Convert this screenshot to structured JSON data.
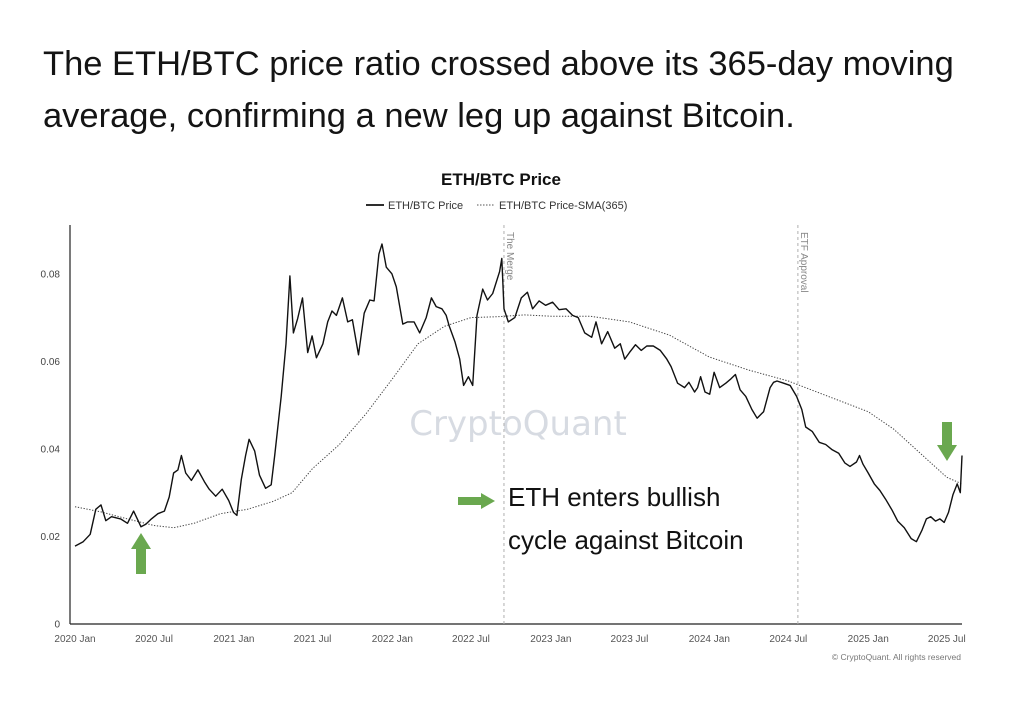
{
  "headline": "The ETH/BTC price ratio crossed above its 365-day moving average, confirming a new leg up against Bitcoin.",
  "watermark": "CryptoQuant",
  "copyright": "© CryptoQuant. All rights reserved",
  "annotation": {
    "lines": [
      "ETH enters bullish",
      "cycle against Bitcoin"
    ]
  },
  "colors": {
    "price": "#111111",
    "sma": "#444444",
    "arrow": "#6aa84f",
    "event_line": "#b0b0b0"
  },
  "chart_data": {
    "type": "line",
    "title": "ETH/BTC Price",
    "legend": [
      "ETH/BTC Price",
      "ETH/BTC Price-SMA(365)"
    ],
    "legend_position": "top-center",
    "grid": false,
    "xlim": [
      "2020-01-01",
      "2025-08-05"
    ],
    "ylim": [
      0,
      0.09
    ],
    "y_ticks": [
      {
        "value": 0,
        "label": "0"
      },
      {
        "value": 0.02,
        "label": "0.02"
      },
      {
        "value": 0.04,
        "label": "0.04"
      },
      {
        "value": 0.06,
        "label": "0.06"
      },
      {
        "value": 0.08,
        "label": "0.08"
      }
    ],
    "x_ticks": [
      {
        "date": "2020-01-01",
        "label": "2020 Jan"
      },
      {
        "date": "2020-07-01",
        "label": "2020 Jul"
      },
      {
        "date": "2021-01-01",
        "label": "2021 Jan"
      },
      {
        "date": "2021-07-01",
        "label": "2021 Jul"
      },
      {
        "date": "2022-01-01",
        "label": "2022 Jan"
      },
      {
        "date": "2022-07-01",
        "label": "2022 Jul"
      },
      {
        "date": "2023-01-01",
        "label": "2023 Jan"
      },
      {
        "date": "2023-07-01",
        "label": "2023 Jul"
      },
      {
        "date": "2024-01-01",
        "label": "2024 Jan"
      },
      {
        "date": "2024-07-01",
        "label": "2024 Jul"
      },
      {
        "date": "2025-01-01",
        "label": "2025 Jan"
      },
      {
        "date": "2025-07-01",
        "label": "2025 Jul"
      }
    ],
    "events": [
      {
        "date": "2022-09-15",
        "label": "The Merge"
      },
      {
        "date": "2024-07-23",
        "label": "ETF Approval"
      }
    ],
    "series": [
      {
        "name": "ETH/BTC Price",
        "style": "solid",
        "points": [
          [
            "2020-01-01",
            0.0178
          ],
          [
            "2020-01-20",
            0.0188
          ],
          [
            "2020-02-05",
            0.0205
          ],
          [
            "2020-02-18",
            0.0262
          ],
          [
            "2020-03-01",
            0.0272
          ],
          [
            "2020-03-12",
            0.0236
          ],
          [
            "2020-03-25",
            0.0245
          ],
          [
            "2020-04-15",
            0.024
          ],
          [
            "2020-05-01",
            0.023
          ],
          [
            "2020-05-15",
            0.0258
          ],
          [
            "2020-06-01",
            0.0222
          ],
          [
            "2020-06-12",
            0.0228
          ],
          [
            "2020-06-25",
            0.024
          ],
          [
            "2020-07-10",
            0.0252
          ],
          [
            "2020-07-25",
            0.0258
          ],
          [
            "2020-08-05",
            0.029
          ],
          [
            "2020-08-15",
            0.0345
          ],
          [
            "2020-08-25",
            0.0352
          ],
          [
            "2020-09-02",
            0.0385
          ],
          [
            "2020-09-12",
            0.0345
          ],
          [
            "2020-09-25",
            0.0328
          ],
          [
            "2020-10-10",
            0.0352
          ],
          [
            "2020-10-25",
            0.0325
          ],
          [
            "2020-11-05",
            0.0308
          ],
          [
            "2020-11-20",
            0.0292
          ],
          [
            "2020-12-05",
            0.0308
          ],
          [
            "2020-12-20",
            0.0282
          ],
          [
            "2020-12-31",
            0.0255
          ],
          [
            "2021-01-08",
            0.0248
          ],
          [
            "2021-01-18",
            0.033
          ],
          [
            "2021-01-28",
            0.0385
          ],
          [
            "2021-02-05",
            0.0422
          ],
          [
            "2021-02-18",
            0.0395
          ],
          [
            "2021-03-01",
            0.034
          ],
          [
            "2021-03-15",
            0.031
          ],
          [
            "2021-03-28",
            0.0318
          ],
          [
            "2021-04-05",
            0.0385
          ],
          [
            "2021-04-20",
            0.052
          ],
          [
            "2021-05-01",
            0.064
          ],
          [
            "2021-05-10",
            0.0795
          ],
          [
            "2021-05-18",
            0.0665
          ],
          [
            "2021-05-28",
            0.0698
          ],
          [
            "2021-06-08",
            0.0745
          ],
          [
            "2021-06-20",
            0.062
          ],
          [
            "2021-06-30",
            0.0658
          ],
          [
            "2021-07-10",
            0.0608
          ],
          [
            "2021-07-25",
            0.064
          ],
          [
            "2021-08-05",
            0.069
          ],
          [
            "2021-08-15",
            0.0715
          ],
          [
            "2021-08-25",
            0.0705
          ],
          [
            "2021-09-08",
            0.0745
          ],
          [
            "2021-09-20",
            0.069
          ],
          [
            "2021-10-01",
            0.0695
          ],
          [
            "2021-10-15",
            0.0615
          ],
          [
            "2021-10-28",
            0.071
          ],
          [
            "2021-11-10",
            0.074
          ],
          [
            "2021-11-20",
            0.0738
          ],
          [
            "2021-12-01",
            0.0845
          ],
          [
            "2021-12-08",
            0.0868
          ],
          [
            "2021-12-18",
            0.0815
          ],
          [
            "2021-12-31",
            0.08
          ],
          [
            "2022-01-10",
            0.077
          ],
          [
            "2022-01-25",
            0.0685
          ],
          [
            "2022-02-05",
            0.069
          ],
          [
            "2022-02-20",
            0.069
          ],
          [
            "2022-03-05",
            0.0665
          ],
          [
            "2022-03-20",
            0.07
          ],
          [
            "2022-04-01",
            0.0745
          ],
          [
            "2022-04-12",
            0.0725
          ],
          [
            "2022-04-25",
            0.072
          ],
          [
            "2022-05-05",
            0.0705
          ],
          [
            "2022-05-12",
            0.068
          ],
          [
            "2022-05-25",
            0.0645
          ],
          [
            "2022-06-05",
            0.0605
          ],
          [
            "2022-06-14",
            0.0545
          ],
          [
            "2022-06-25",
            0.0565
          ],
          [
            "2022-07-05",
            0.0545
          ],
          [
            "2022-07-15",
            0.0705
          ],
          [
            "2022-07-28",
            0.0765
          ],
          [
            "2022-08-08",
            0.074
          ],
          [
            "2022-08-20",
            0.0755
          ],
          [
            "2022-09-05",
            0.0805
          ],
          [
            "2022-09-10",
            0.0835
          ],
          [
            "2022-09-15",
            0.072
          ],
          [
            "2022-09-25",
            0.069
          ],
          [
            "2022-10-10",
            0.07
          ],
          [
            "2022-10-25",
            0.0745
          ],
          [
            "2022-11-08",
            0.0758
          ],
          [
            "2022-11-20",
            0.072
          ],
          [
            "2022-12-05",
            0.0738
          ],
          [
            "2022-12-20",
            0.0728
          ],
          [
            "2023-01-05",
            0.0735
          ],
          [
            "2023-01-20",
            0.0718
          ],
          [
            "2023-02-05",
            0.072
          ],
          [
            "2023-02-20",
            0.0705
          ],
          [
            "2023-03-05",
            0.07
          ],
          [
            "2023-03-20",
            0.0665
          ],
          [
            "2023-04-05",
            0.0655
          ],
          [
            "2023-04-15",
            0.069
          ],
          [
            "2023-04-28",
            0.064
          ],
          [
            "2023-05-12",
            0.0668
          ],
          [
            "2023-05-28",
            0.063
          ],
          [
            "2023-06-10",
            0.064
          ],
          [
            "2023-06-20",
            0.0605
          ],
          [
            "2023-07-01",
            0.062
          ],
          [
            "2023-07-15",
            0.0638
          ],
          [
            "2023-07-28",
            0.0625
          ],
          [
            "2023-08-10",
            0.0635
          ],
          [
            "2023-08-25",
            0.0635
          ],
          [
            "2023-09-10",
            0.0625
          ],
          [
            "2023-09-25",
            0.0605
          ],
          [
            "2023-10-05",
            0.0588
          ],
          [
            "2023-10-20",
            0.055
          ],
          [
            "2023-11-05",
            0.054
          ],
          [
            "2023-11-15",
            0.0552
          ],
          [
            "2023-11-28",
            0.053
          ],
          [
            "2023-12-05",
            0.054
          ],
          [
            "2023-12-12",
            0.0565
          ],
          [
            "2023-12-22",
            0.053
          ],
          [
            "2024-01-02",
            0.0525
          ],
          [
            "2024-01-12",
            0.0575
          ],
          [
            "2024-01-25",
            0.054
          ],
          [
            "2024-02-08",
            0.055
          ],
          [
            "2024-02-20",
            0.056
          ],
          [
            "2024-03-01",
            0.057
          ],
          [
            "2024-03-12",
            0.0535
          ],
          [
            "2024-03-25",
            0.052
          ],
          [
            "2024-04-08",
            0.049
          ],
          [
            "2024-04-20",
            0.047
          ],
          [
            "2024-05-05",
            0.0485
          ],
          [
            "2024-05-20",
            0.054
          ],
          [
            "2024-05-28",
            0.0552
          ],
          [
            "2024-06-05",
            0.0555
          ],
          [
            "2024-06-20",
            0.055
          ],
          [
            "2024-07-05",
            0.0545
          ],
          [
            "2024-07-20",
            0.052
          ],
          [
            "2024-08-01",
            0.049
          ],
          [
            "2024-08-10",
            0.045
          ],
          [
            "2024-08-25",
            0.044
          ],
          [
            "2024-09-10",
            0.0415
          ],
          [
            "2024-09-25",
            0.041
          ],
          [
            "2024-10-10",
            0.0398
          ],
          [
            "2024-10-25",
            0.039
          ],
          [
            "2024-11-08",
            0.0368
          ],
          [
            "2024-11-20",
            0.036
          ],
          [
            "2024-12-05",
            0.037
          ],
          [
            "2024-12-12",
            0.0385
          ],
          [
            "2024-12-20",
            0.0365
          ],
          [
            "2025-01-01",
            0.0345
          ],
          [
            "2025-01-15",
            0.032
          ],
          [
            "2025-01-28",
            0.0305
          ],
          [
            "2025-02-10",
            0.0285
          ],
          [
            "2025-02-25",
            0.026
          ],
          [
            "2025-03-10",
            0.0235
          ],
          [
            "2025-03-25",
            0.022
          ],
          [
            "2025-04-10",
            0.0195
          ],
          [
            "2025-04-22",
            0.0188
          ],
          [
            "2025-05-05",
            0.0215
          ],
          [
            "2025-05-15",
            0.024
          ],
          [
            "2025-05-25",
            0.0245
          ],
          [
            "2025-06-05",
            0.0235
          ],
          [
            "2025-06-15",
            0.024
          ],
          [
            "2025-06-25",
            0.0232
          ],
          [
            "2025-07-05",
            0.0255
          ],
          [
            "2025-07-15",
            0.0295
          ],
          [
            "2025-07-25",
            0.032
          ],
          [
            "2025-08-01",
            0.03
          ],
          [
            "2025-08-05",
            0.0385
          ]
        ]
      },
      {
        "name": "ETH/BTC Price-SMA(365)",
        "style": "dotted",
        "points": [
          [
            "2020-01-01",
            0.0268
          ],
          [
            "2020-03-01",
            0.0256
          ],
          [
            "2020-05-01",
            0.024
          ],
          [
            "2020-07-01",
            0.0225
          ],
          [
            "2020-08-15",
            0.022
          ],
          [
            "2020-10-01",
            0.023
          ],
          [
            "2020-12-01",
            0.0252
          ],
          [
            "2021-02-01",
            0.0262
          ],
          [
            "2021-04-01",
            0.028
          ],
          [
            "2021-05-15",
            0.03
          ],
          [
            "2021-07-01",
            0.0355
          ],
          [
            "2021-09-01",
            0.041
          ],
          [
            "2021-11-01",
            0.048
          ],
          [
            "2022-01-01",
            0.056
          ],
          [
            "2022-03-01",
            0.064
          ],
          [
            "2022-05-01",
            0.068
          ],
          [
            "2022-07-01",
            0.07
          ],
          [
            "2022-09-01",
            0.0702
          ],
          [
            "2022-11-01",
            0.0706
          ],
          [
            "2023-01-01",
            0.0703
          ],
          [
            "2023-04-01",
            0.0703
          ],
          [
            "2023-07-01",
            0.069
          ],
          [
            "2023-10-01",
            0.066
          ],
          [
            "2024-01-01",
            0.061
          ],
          [
            "2024-04-01",
            0.058
          ],
          [
            "2024-07-01",
            0.0555
          ],
          [
            "2024-10-01",
            0.052
          ],
          [
            "2025-01-01",
            0.0485
          ],
          [
            "2025-03-01",
            0.0445
          ],
          [
            "2025-05-01",
            0.039
          ],
          [
            "2025-07-01",
            0.0335
          ],
          [
            "2025-08-05",
            0.032
          ]
        ]
      }
    ]
  }
}
